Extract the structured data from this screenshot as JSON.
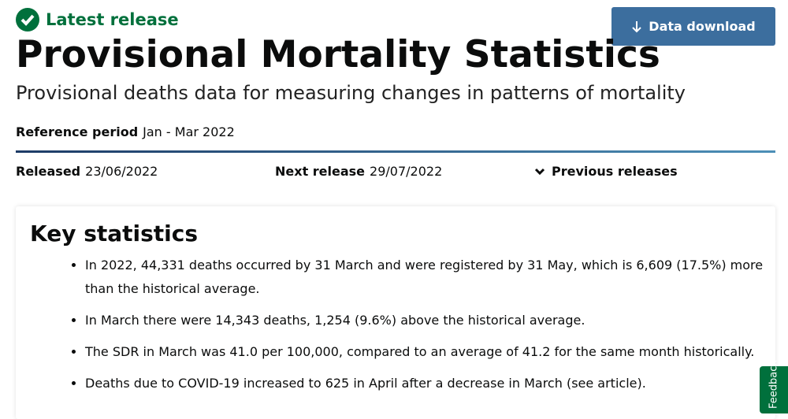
{
  "status": "Latest release",
  "button": "Data download",
  "title": "Provisional Mortality Statistics",
  "subtitle": "Provisional deaths data for measuring changes in patterns of mortality",
  "reference": {
    "label": "Reference period",
    "value": "Jan - Mar 2022"
  },
  "released": {
    "label": "Released",
    "value": "23/06/2022"
  },
  "next_release": {
    "label": "Next release",
    "value": "29/07/2022"
  },
  "previous": "Previous releases",
  "key": {
    "title": "Key statistics",
    "items": [
      "In 2022, 44,331 deaths occurred by 31 March and were registered by 31 May, which is 6,609 (17.5%) more than the historical average.",
      "In March there were 14,343 deaths, 1,254 (9.6%) above the historical average.",
      "The SDR in March was 41.0 per 100,000, compared to an average of 41.2 for the same month historically.",
      "Deaths due to COVID-19 increased to 625 in April after a decrease in March (see article)."
    ]
  },
  "feedback": "Feedback"
}
